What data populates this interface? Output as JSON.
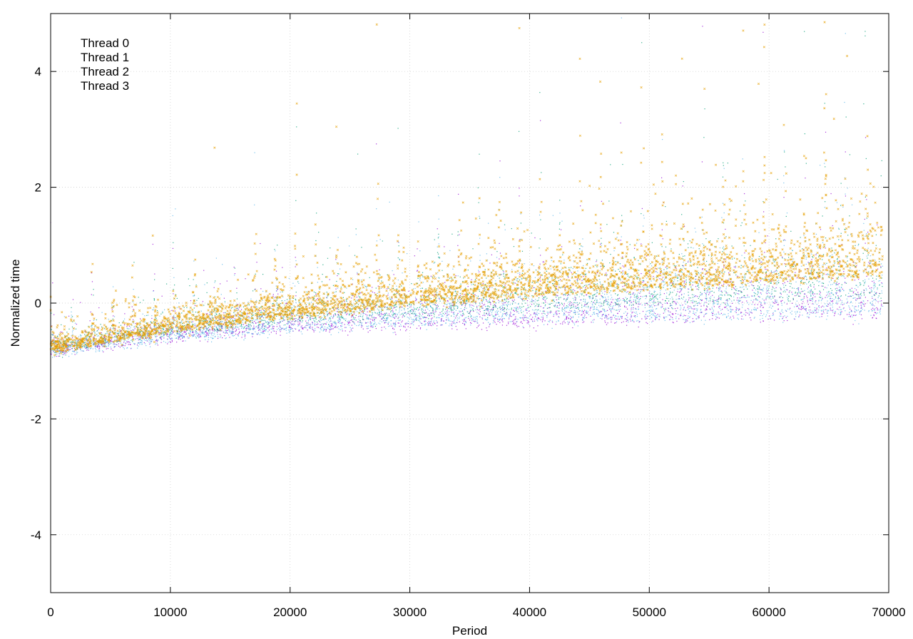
{
  "chart_data": {
    "type": "scatter",
    "xlabel": "Period",
    "ylabel": "Normalized time",
    "xlim": [
      0,
      70000
    ],
    "ylim": [
      -5,
      5
    ],
    "x_ticks": [
      0,
      10000,
      20000,
      30000,
      40000,
      50000,
      60000,
      70000
    ],
    "y_ticks": [
      -4,
      -2,
      0,
      2,
      4
    ],
    "x_tick_labels": [
      "0",
      "10000",
      "20000",
      "30000",
      "40000",
      "50000",
      "60000",
      "70000"
    ],
    "y_tick_labels": [
      "-4",
      "-2",
      "0",
      "2",
      "4"
    ],
    "grid": true,
    "legend_position": "top-left",
    "x_range_data": [
      0,
      69500
    ],
    "series": [
      {
        "name": "Thread 0",
        "color": "#9400d3",
        "marker": "dot",
        "trend": {
          "x": [
            0,
            10000,
            20000,
            30000,
            40000,
            50000,
            60000,
            69500
          ],
          "y": [
            -0.85,
            -0.6,
            -0.45,
            -0.4,
            -0.35,
            -0.3,
            -0.25,
            -0.2
          ]
        }
      },
      {
        "name": "Thread 1",
        "color": "#009e73",
        "marker": "dot",
        "trend": {
          "x": [
            0,
            10000,
            20000,
            30000,
            40000,
            50000,
            60000,
            69500
          ],
          "y": [
            -0.8,
            -0.5,
            -0.3,
            -0.2,
            -0.1,
            0.0,
            0.1,
            0.15
          ]
        }
      },
      {
        "name": "Thread 2",
        "color": "#56b4e9",
        "marker": "dot",
        "trend": {
          "x": [
            0,
            10000,
            20000,
            30000,
            40000,
            50000,
            60000,
            69500
          ],
          "y": [
            -0.85,
            -0.6,
            -0.45,
            -0.35,
            -0.3,
            -0.25,
            -0.2,
            -0.15
          ]
        }
      },
      {
        "name": "Thread 3",
        "color": "#e69f00",
        "marker": "cross",
        "trend": {
          "x": [
            0,
            10000,
            20000,
            30000,
            40000,
            50000,
            60000,
            69500
          ],
          "y": [
            -0.8,
            -0.45,
            -0.2,
            0.0,
            0.15,
            0.3,
            0.4,
            0.5
          ]
        }
      }
    ]
  }
}
